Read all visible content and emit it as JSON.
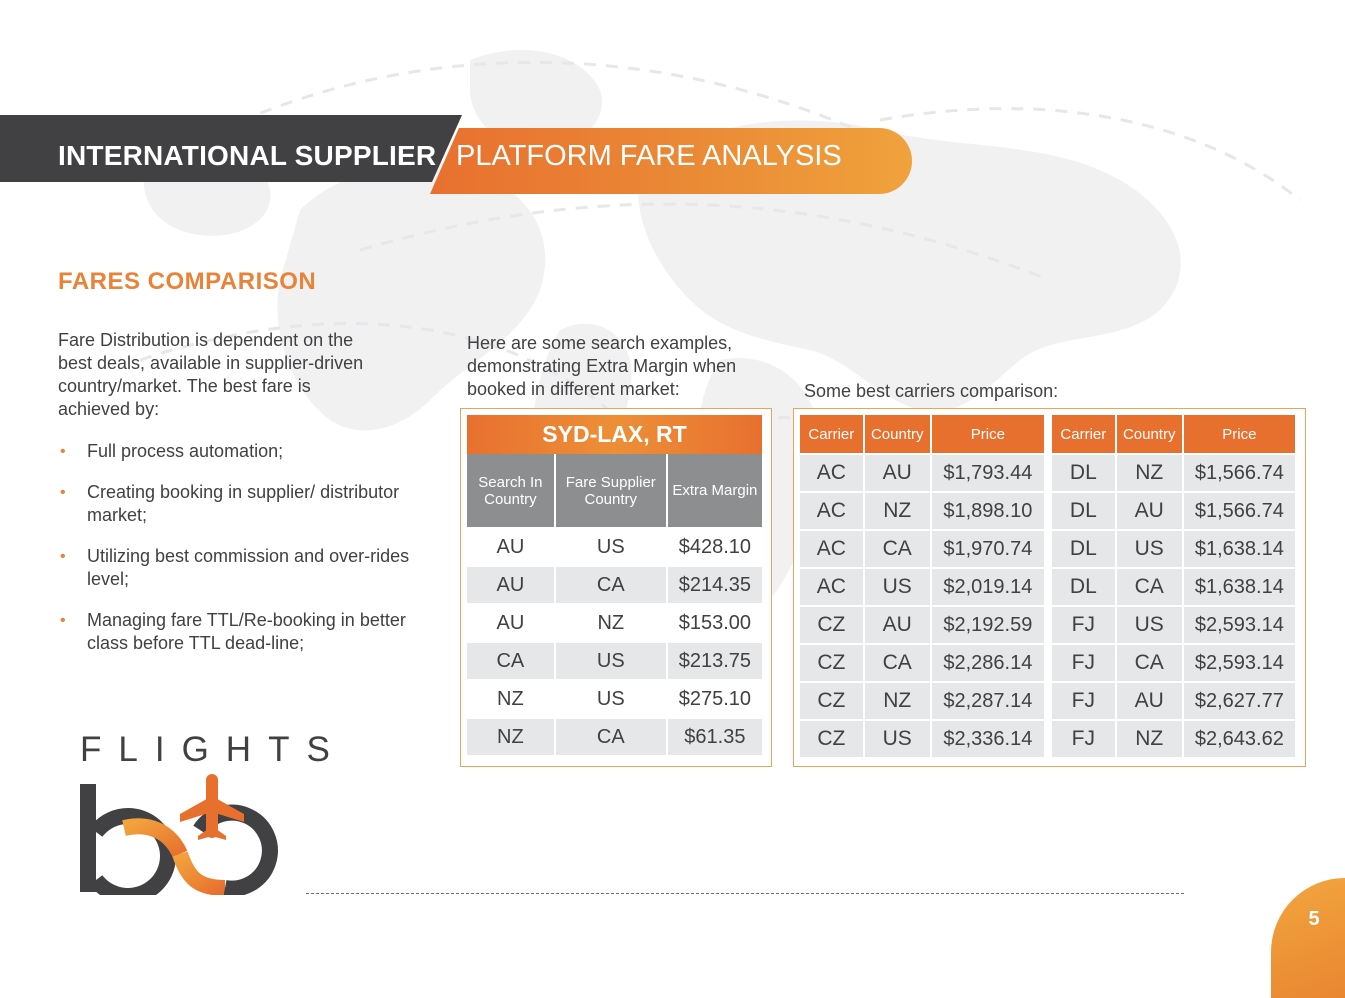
{
  "header": {
    "left_title": "INTERNATIONAL SUPPLIER",
    "right_title": "PLATFORM FARE ANALYSIS"
  },
  "section_title": "FARES COMPARISON",
  "intro_text": "Fare Distribution is dependent on the best deals, available in supplier-driven country/market. The best fare is achieved by:",
  "bullets": [
    "Full process automation;",
    "Creating booking in supplier/ distributor market;",
    "Utilizing best commission and over-rides level;",
    "Managing fare TTL/Re-booking in better class before TTL dead-line;"
  ],
  "search_note": "Here are some search examples, demonstrating Extra Margin when booked in different market:",
  "carriers_note": "Some best carriers comparison:",
  "route_table": {
    "title": "SYD-LAX, RT",
    "columns": [
      "Search In Country",
      "Fare Supplier Country",
      "Extra Margin"
    ],
    "rows": [
      [
        "AU",
        "US",
        "$428.10"
      ],
      [
        "AU",
        "CA",
        "$214.35"
      ],
      [
        "AU",
        "NZ",
        "$153.00"
      ],
      [
        "CA",
        "US",
        "$213.75"
      ],
      [
        "NZ",
        "US",
        "$275.10"
      ],
      [
        "NZ",
        "CA",
        "$61.35"
      ]
    ]
  },
  "carriers_table_a": {
    "columns": [
      "Carrier",
      "Country",
      "Price"
    ],
    "rows": [
      [
        "AC",
        "AU",
        "$1,793.44"
      ],
      [
        "AC",
        "NZ",
        "$1,898.10"
      ],
      [
        "AC",
        "CA",
        "$1,970.74"
      ],
      [
        "AC",
        "US",
        "$2,019.14"
      ],
      [
        "CZ",
        "AU",
        "$2,192.59"
      ],
      [
        "CZ",
        "CA",
        "$2,286.14"
      ],
      [
        "CZ",
        "NZ",
        "$2,287.14"
      ],
      [
        "CZ",
        "US",
        "$2,336.14"
      ]
    ]
  },
  "carriers_table_b": {
    "columns": [
      "Carrier",
      "Country",
      "Price"
    ],
    "rows": [
      [
        "DL",
        "NZ",
        "$1,566.74"
      ],
      [
        "DL",
        "AU",
        "$1,566.74"
      ],
      [
        "DL",
        "US",
        "$1,638.14"
      ],
      [
        "DL",
        "CA",
        "$1,638.14"
      ],
      [
        "FJ",
        "US",
        "$2,593.14"
      ],
      [
        "FJ",
        "CA",
        "$2,593.14"
      ],
      [
        "FJ",
        "AU",
        "$2,627.77"
      ],
      [
        "FJ",
        "NZ",
        "$2,643.62"
      ]
    ]
  },
  "logo": {
    "wordmark": "FLIGHTS",
    "icon": "b2b-airplane-logo"
  },
  "page_number": "5",
  "colors": {
    "accent_orange": "#e8702f",
    "dark_gray": "#414042",
    "table_header_gray": "#8d8e90",
    "row_gray": "#e6e7e8"
  }
}
